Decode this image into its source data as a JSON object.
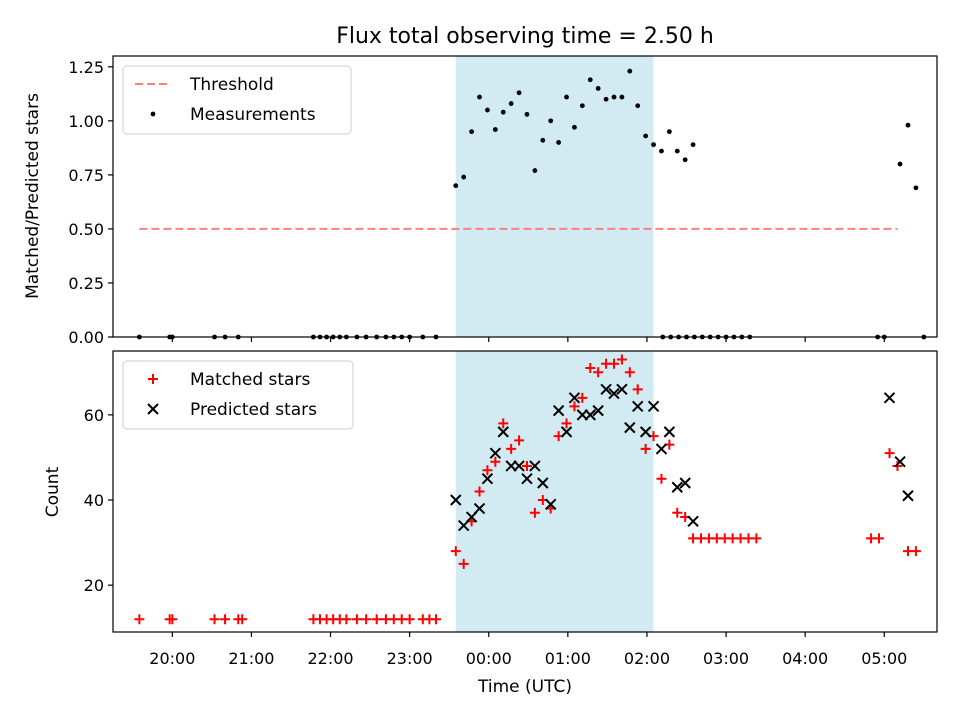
{
  "chart_data": {
    "title": "Flux total observing time = 2.50 h",
    "xlabel": "Time (UTC)",
    "x_ticks": [
      "20:00",
      "21:00",
      "22:00",
      "23:00",
      "00:00",
      "01:00",
      "02:00",
      "03:00",
      "04:00",
      "05:00"
    ],
    "x_tick_times": [
      "20:00",
      "21:00",
      "22:00",
      "23:00",
      "24:00",
      "25:00",
      "26:00",
      "27:00",
      "28:00",
      "29:00"
    ],
    "xlim": [
      "19:15",
      "29:40"
    ],
    "shaded_span": [
      "23:35",
      "26:05"
    ],
    "shade_color": "#add8e6",
    "panels": [
      {
        "type": "scatter",
        "ylabel": "Matched/Predicted stars",
        "ylim": [
          0,
          1.3
        ],
        "yticks": [
          "0.00",
          "0.25",
          "0.50",
          "0.75",
          "1.00",
          "1.25"
        ],
        "ytick_values": [
          0,
          0.25,
          0.5,
          0.75,
          1.0,
          1.25
        ],
        "legend_position": "upper-left",
        "threshold": {
          "name": "Threshold",
          "y": 0.5,
          "x": [
            "19:35",
            "29:10"
          ],
          "color": "#ff7f7f"
        },
        "series": [
          {
            "name": "Measurements",
            "marker": "dot",
            "color": "#000000",
            "points": [
              [
                "19:35",
                0
              ],
              [
                "19:58",
                0
              ],
              [
                "20:00",
                0
              ],
              [
                "20:32",
                0
              ],
              [
                "20:40",
                0
              ],
              [
                "20:50",
                0
              ],
              [
                "21:47",
                0
              ],
              [
                "21:52",
                0
              ],
              [
                "21:57",
                0
              ],
              [
                "22:02",
                0
              ],
              [
                "22:07",
                0
              ],
              [
                "22:12",
                0
              ],
              [
                "22:20",
                0
              ],
              [
                "22:27",
                0
              ],
              [
                "22:35",
                0
              ],
              [
                "22:42",
                0
              ],
              [
                "22:48",
                0
              ],
              [
                "22:54",
                0
              ],
              [
                "23:00",
                0
              ],
              [
                "23:10",
                0
              ],
              [
                "23:20",
                0
              ],
              [
                "23:35",
                0.7
              ],
              [
                "23:41",
                0.74
              ],
              [
                "23:47",
                0.95
              ],
              [
                "23:53",
                1.11
              ],
              [
                "23:59",
                1.05
              ],
              [
                "24:05",
                0.96
              ],
              [
                "24:11",
                1.04
              ],
              [
                "24:17",
                1.08
              ],
              [
                "24:23",
                1.13
              ],
              [
                "24:29",
                1.03
              ],
              [
                "24:35",
                0.77
              ],
              [
                "24:41",
                0.91
              ],
              [
                "24:47",
                1.0
              ],
              [
                "24:53",
                0.9
              ],
              [
                "24:59",
                1.11
              ],
              [
                "25:05",
                0.97
              ],
              [
                "25:11",
                1.07
              ],
              [
                "25:17",
                1.19
              ],
              [
                "25:23",
                1.15
              ],
              [
                "25:29",
                1.1
              ],
              [
                "25:35",
                1.11
              ],
              [
                "25:41",
                1.11
              ],
              [
                "25:47",
                1.23
              ],
              [
                "25:53",
                1.07
              ],
              [
                "25:59",
                0.93
              ],
              [
                "26:05",
                0.89
              ],
              [
                "26:11",
                0.86
              ],
              [
                "26:17",
                0.95
              ],
              [
                "26:23",
                0.86
              ],
              [
                "26:29",
                0.82
              ],
              [
                "26:35",
                0.89
              ],
              [
                "26:12",
                0
              ],
              [
                "26:18",
                0
              ],
              [
                "26:24",
                0
              ],
              [
                "26:30",
                0
              ],
              [
                "26:36",
                0
              ],
              [
                "26:42",
                0
              ],
              [
                "26:48",
                0
              ],
              [
                "26:54",
                0
              ],
              [
                "27:00",
                0
              ],
              [
                "27:06",
                0
              ],
              [
                "27:12",
                0
              ],
              [
                "27:18",
                0
              ],
              [
                "28:55",
                0
              ],
              [
                "29:00",
                0
              ],
              [
                "29:12",
                0.8
              ],
              [
                "29:18",
                0.98
              ],
              [
                "29:24",
                0.69
              ],
              [
                "29:30",
                0
              ]
            ]
          }
        ]
      },
      {
        "type": "scatter",
        "ylabel": "Count",
        "ylim": [
          9,
          75
        ],
        "yticks": [
          "20",
          "40",
          "60"
        ],
        "ytick_values": [
          20,
          40,
          60
        ],
        "legend_position": "upper-left",
        "series": [
          {
            "name": "Matched stars",
            "marker": "plus",
            "color": "#ff0000",
            "points": [
              [
                "19:35",
                12
              ],
              [
                "19:58",
                12
              ],
              [
                "20:00",
                12
              ],
              [
                "20:32",
                12
              ],
              [
                "20:40",
                12
              ],
              [
                "20:50",
                12
              ],
              [
                "20:53",
                12
              ],
              [
                "21:47",
                12
              ],
              [
                "21:52",
                12
              ],
              [
                "21:57",
                12
              ],
              [
                "22:02",
                12
              ],
              [
                "22:07",
                12
              ],
              [
                "22:12",
                12
              ],
              [
                "22:20",
                12
              ],
              [
                "22:27",
                12
              ],
              [
                "22:35",
                12
              ],
              [
                "22:42",
                12
              ],
              [
                "22:48",
                12
              ],
              [
                "22:54",
                12
              ],
              [
                "23:00",
                12
              ],
              [
                "23:10",
                12
              ],
              [
                "23:15",
                12
              ],
              [
                "23:20",
                12
              ],
              [
                "23:35",
                28
              ],
              [
                "23:41",
                25
              ],
              [
                "23:47",
                35
              ],
              [
                "23:53",
                42
              ],
              [
                "23:59",
                47
              ],
              [
                "24:05",
                49
              ],
              [
                "24:11",
                58
              ],
              [
                "24:17",
                52
              ],
              [
                "24:23",
                54
              ],
              [
                "24:29",
                48
              ],
              [
                "24:35",
                37
              ],
              [
                "24:41",
                40
              ],
              [
                "24:47",
                38
              ],
              [
                "24:53",
                55
              ],
              [
                "24:59",
                58
              ],
              [
                "25:05",
                62
              ],
              [
                "25:11",
                64
              ],
              [
                "25:17",
                71
              ],
              [
                "25:23",
                70
              ],
              [
                "25:29",
                72
              ],
              [
                "25:35",
                72
              ],
              [
                "25:41",
                73
              ],
              [
                "25:47",
                70
              ],
              [
                "25:53",
                66
              ],
              [
                "25:59",
                52
              ],
              [
                "26:05",
                55
              ],
              [
                "26:11",
                45
              ],
              [
                "26:17",
                53
              ],
              [
                "26:23",
                37
              ],
              [
                "26:29",
                36
              ],
              [
                "26:35",
                31
              ],
              [
                "26:41",
                31
              ],
              [
                "26:47",
                31
              ],
              [
                "26:53",
                31
              ],
              [
                "26:59",
                31
              ],
              [
                "27:05",
                31
              ],
              [
                "27:11",
                31
              ],
              [
                "27:17",
                31
              ],
              [
                "27:23",
                31
              ],
              [
                "28:50",
                31
              ],
              [
                "28:56",
                31
              ],
              [
                "29:04",
                51
              ],
              [
                "29:10",
                48
              ],
              [
                "29:18",
                28
              ],
              [
                "29:24",
                28
              ]
            ]
          },
          {
            "name": "Predicted stars",
            "marker": "x",
            "color": "#000000",
            "points": [
              [
                "23:35",
                40
              ],
              [
                "23:41",
                34
              ],
              [
                "23:47",
                36
              ],
              [
                "23:53",
                38
              ],
              [
                "23:59",
                45
              ],
              [
                "24:05",
                51
              ],
              [
                "24:11",
                56
              ],
              [
                "24:17",
                48
              ],
              [
                "24:23",
                48
              ],
              [
                "24:29",
                45
              ],
              [
                "24:35",
                48
              ],
              [
                "24:41",
                44
              ],
              [
                "24:47",
                39
              ],
              [
                "24:53",
                61
              ],
              [
                "24:59",
                56
              ],
              [
                "25:05",
                64
              ],
              [
                "25:11",
                60
              ],
              [
                "25:17",
                60
              ],
              [
                "25:23",
                61
              ],
              [
                "25:29",
                66
              ],
              [
                "25:35",
                65
              ],
              [
                "25:41",
                66
              ],
              [
                "25:47",
                57
              ],
              [
                "25:53",
                62
              ],
              [
                "25:59",
                56
              ],
              [
                "26:05",
                62
              ],
              [
                "26:11",
                52
              ],
              [
                "26:17",
                56
              ],
              [
                "26:23",
                43
              ],
              [
                "26:29",
                44
              ],
              [
                "26:35",
                35
              ],
              [
                "29:04",
                64
              ],
              [
                "29:12",
                49
              ],
              [
                "29:18",
                41
              ]
            ]
          }
        ]
      }
    ]
  }
}
